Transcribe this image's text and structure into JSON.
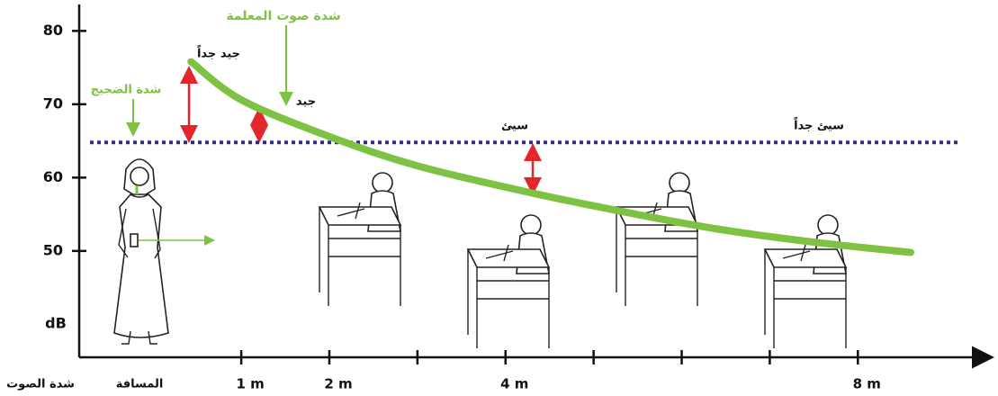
{
  "chart_data": {
    "type": "line",
    "series": [
      {
        "color": "#7dc243",
        "x": [
          0.43,
          1,
          2,
          3,
          4.3,
          5.4,
          6.4,
          7.5,
          8.6
        ],
        "values": [
          75.8,
          70.6,
          65.6,
          61.6,
          57.9,
          55.2,
          53,
          51.2,
          49.8
        ]
      }
    ],
    "reference_line": {
      "value": 64.8,
      "color": "#2d2a8c"
    },
    "xlabel": "المسافة",
    "ylabel": "شدة الصوت",
    "yunit": "dB",
    "xlim": [
      -0.84,
      9.55
    ],
    "ylim": [
      35.5,
      83.6
    ],
    "xticks": [
      {
        "value": 1,
        "label": "1 m"
      },
      {
        "value": 2,
        "label": "2 m"
      },
      {
        "value": 3,
        "label": null
      },
      {
        "value": 4,
        "label": "4 m"
      },
      {
        "value": 5,
        "label": null
      },
      {
        "value": 6,
        "label": null
      },
      {
        "value": 7,
        "label": null
      },
      {
        "value": 8,
        "label": "8 m"
      }
    ],
    "yticks": [
      50,
      60,
      70,
      80
    ],
    "annotations": [
      {
        "text": "شدة صوت المعلمة",
        "color": "#7dc243"
      },
      {
        "text": "جيد جداً",
        "color": "#111111"
      },
      {
        "text": "جيد",
        "color": "#111111"
      },
      {
        "text": "شدة الضجيج",
        "color": "#7dc243"
      },
      {
        "text": "سيئ",
        "color": "#111111"
      },
      {
        "text": "سيئ جداً",
        "color": "#111111"
      }
    ]
  }
}
